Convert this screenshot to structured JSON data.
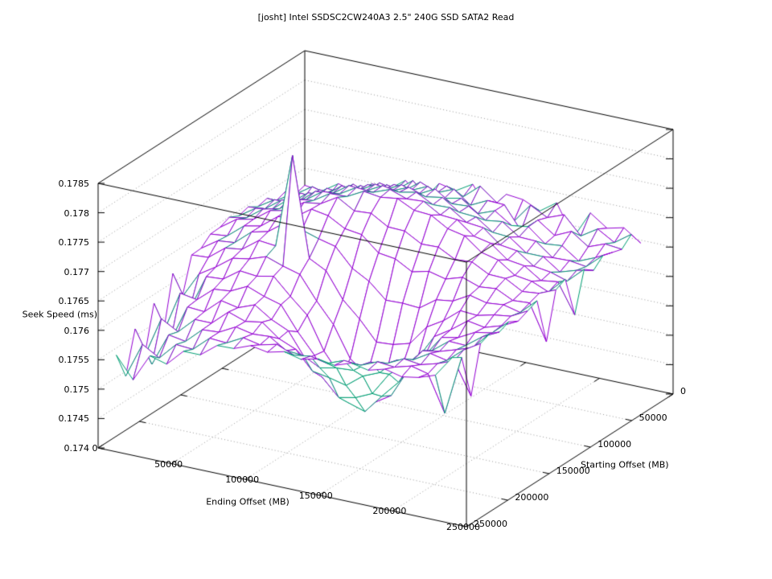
{
  "chart_data": {
    "type": "surface",
    "render_style": "3d-wireframe-hidden3d",
    "title": "[josht] Intel SSDSC2CW240A3 2.5\" 240G SSD SATA2 Read",
    "xlabel": "Ending Offset (MB)",
    "ylabel": "Starting Offset (MB)",
    "zlabel": "Seek Speed (ms)",
    "xlim": [
      0,
      250000
    ],
    "ylim": [
      0,
      250000
    ],
    "zlim": [
      0.174,
      0.1785
    ],
    "grid": true,
    "x_tick_values": [
      0,
      50000,
      100000,
      150000,
      200000,
      250000
    ],
    "x_tick_labels": [
      "0",
      "50000",
      "100000",
      "150000",
      "200000",
      "250000"
    ],
    "y_tick_values": [
      0,
      50000,
      100000,
      150000,
      200000,
      250000
    ],
    "y_tick_labels": [
      "0",
      "50000",
      "100000",
      "150000",
      "200000",
      "250000"
    ],
    "z_tick_values": [
      0.174,
      0.1745,
      0.175,
      0.1755,
      0.176,
      0.1765,
      0.177,
      0.1775,
      0.178,
      0.1785
    ],
    "z_tick_labels": [
      "0.174",
      "0.1745",
      "0.175",
      "0.1755",
      "0.176",
      "0.1765",
      "0.177",
      "0.1775",
      "0.178",
      "0.1785"
    ],
    "colors": {
      "surface_top": "#9400d3",
      "surface_bottom": "#009e73",
      "axis": "#000000",
      "grid": "#9a9a9a",
      "background": "#ffffff",
      "text": "#000000"
    },
    "x_values": [
      0,
      11400,
      22800,
      34200,
      45600,
      57000,
      68400,
      79800,
      91200,
      102600,
      114000,
      125400,
      136800,
      148200,
      159600,
      171000,
      182400,
      193800,
      205200,
      216600,
      228000
    ],
    "y_values": [
      0,
      11400,
      22800,
      34200,
      45600,
      57000,
      68400,
      79800,
      91200,
      102600,
      114000,
      125400,
      136800,
      148200,
      159600,
      171000,
      182400,
      193800,
      205200,
      216600,
      228000
    ],
    "z_values_ms": [
      [
        0.17621,
        0.17617,
        0.17636,
        0.17628,
        0.17648,
        0.17645,
        0.17666,
        0.17638,
        0.17673,
        0.17667,
        0.17684,
        0.17642,
        0.17679,
        0.17676,
        0.17663,
        0.17683,
        0.1763,
        0.17678,
        0.17658,
        0.17665,
        0.17645
      ],
      [
        0.17616,
        0.17635,
        0.17627,
        0.17647,
        0.17636,
        0.17666,
        0.1766,
        0.17682,
        0.17655,
        0.17685,
        0.17673,
        0.17697,
        0.17675,
        0.17649,
        0.17683,
        0.17668,
        0.17679,
        0.17649,
        0.17667,
        0.1765,
        0.1767
      ],
      [
        0.17632,
        0.17623,
        0.17646,
        0.17645,
        0.17668,
        0.17656,
        0.17679,
        0.17674,
        0.17696,
        0.17684,
        0.17696,
        0.17675,
        0.17689,
        0.17688,
        0.1765,
        0.17674,
        0.17654,
        0.17667,
        0.17647,
        0.17658,
        0.17655
      ],
      [
        0.17626,
        0.17644,
        0.1764,
        0.17665,
        0.17662,
        0.17682,
        0.17675,
        0.17696,
        0.17692,
        0.17705,
        0.17691,
        0.17697,
        0.17677,
        0.17688,
        0.17669,
        0.17673,
        0.1765,
        0.17653,
        0.17633,
        0.17645,
        0.1766
      ],
      [
        0.1764,
        0.17639,
        0.17661,
        0.17659,
        0.1768,
        0.17678,
        0.177,
        0.17697,
        0.17712,
        0.17702,
        0.17717,
        0.17698,
        0.177,
        0.17682,
        0.17686,
        0.17666,
        0.17665,
        0.17643,
        0.17644,
        0.1764,
        0.17665
      ],
      [
        0.17636,
        0.17654,
        0.17655,
        0.17678,
        0.1768,
        0.17702,
        0.177,
        0.17717,
        0.17712,
        0.17724,
        0.17714,
        0.17719,
        0.177,
        0.17698,
        0.17678,
        0.17676,
        0.17655,
        0.17655,
        0.17635,
        0.17644,
        0.1765
      ],
      [
        0.17646,
        0.17649,
        0.1767,
        0.17673,
        0.17697,
        0.17699,
        0.17719,
        0.17716,
        0.17731,
        0.17726,
        0.17732,
        0.17717,
        0.17718,
        0.17699,
        0.17696,
        0.17673,
        0.17669,
        0.17649,
        0.17645,
        0.17636,
        0.17662
      ],
      [
        0.17641,
        0.1766,
        0.17665,
        0.17688,
        0.17693,
        0.17713,
        0.17715,
        0.17732,
        0.1773,
        0.17741,
        0.17731,
        0.17733,
        0.17716,
        0.17714,
        0.17692,
        0.17686,
        0.17664,
        0.1766,
        0.17641,
        0.17645,
        0.17595
      ],
      [
        0.17649,
        0.17654,
        0.17675,
        0.17682,
        0.17704,
        0.17708,
        0.17726,
        0.17727,
        0.17742,
        0.17738,
        0.17742,
        0.17728,
        0.17726,
        0.17709,
        0.17703,
        0.17681,
        0.17674,
        0.17654,
        0.1765,
        0.17638,
        0.17666
      ],
      [
        0.17642,
        0.17662,
        0.17668,
        0.17689,
        0.17695,
        0.17715,
        0.17719,
        0.17736,
        0.17719,
        0.17721,
        0.17704,
        0.17703,
        0.17687,
        0.17688,
        0.17673,
        0.17675,
        0.1766,
        0.17659,
        0.17643,
        0.17646,
        0.17658
      ],
      [
        0.17641,
        0.17644,
        0.17667,
        0.17673,
        0.17695,
        0.177,
        0.1772,
        0.17715,
        0.17699,
        0.17695,
        0.1767,
        0.17666,
        0.1765,
        0.17657,
        0.1765,
        0.17659,
        0.17649,
        0.17652,
        0.17638,
        0.1764,
        0.1758
      ],
      [
        0.17627,
        0.17646,
        0.17649,
        0.17673,
        0.1768,
        0.17701,
        0.17695,
        0.17686,
        0.17679,
        0.17648,
        0.17632,
        0.17606,
        0.17607,
        0.17605,
        0.17625,
        0.17629,
        0.17645,
        0.17638,
        0.17641,
        0.17634,
        0.1766
      ],
      [
        0.17626,
        0.17628,
        0.1765,
        0.17654,
        0.17675,
        0.17672,
        0.17832,
        0.17663,
        0.17648,
        0.17605,
        0.17578,
        0.17545,
        0.17547,
        0.17555,
        0.17589,
        0.17606,
        0.17629,
        0.17627,
        0.17634,
        0.17638,
        0.17653
      ],
      [
        0.17565,
        0.1761,
        0.17628,
        0.17649,
        0.17654,
        0.17664,
        0.17654,
        0.17646,
        0.17607,
        0.17573,
        0.17521,
        0.17499,
        0.17489,
        0.17518,
        0.17545,
        0.17589,
        0.17607,
        0.17628,
        0.17623,
        0.17632,
        0.17646
      ],
      [
        0.17615,
        0.1756,
        0.17622,
        0.17624,
        0.17644,
        0.17641,
        0.17647,
        0.17619,
        0.17593,
        0.17538,
        0.17501,
        0.17461,
        0.17469,
        0.17487,
        0.17536,
        0.17567,
        0.17604,
        0.1761,
        0.17625,
        0.1763,
        0.17655
      ],
      [
        0.17525,
        0.17598,
        0.17593,
        0.17617,
        0.1762,
        0.17634,
        0.17623,
        0.17615,
        0.17575,
        0.17541,
        0.17492,
        0.17473,
        0.17464,
        0.17496,
        0.17526,
        0.17573,
        0.17592,
        0.17614,
        0.17613,
        0.17634,
        0.17648
      ],
      [
        0.17585,
        0.17528,
        0.17591,
        0.17589,
        0.17614,
        0.17608,
        0.17619,
        0.176,
        0.17587,
        0.17546,
        0.17521,
        0.17492,
        0.17498,
        0.17511,
        0.1755,
        0.17571,
        0.17602,
        0.17607,
        0.17616,
        0.17626,
        0.17656
      ],
      [
        0.17505,
        0.17575,
        0.17559,
        0.17586,
        0.17586,
        0.17611,
        0.17601,
        0.17606,
        0.17584,
        0.17572,
        0.17541,
        0.17536,
        0.17529,
        0.17551,
        0.17563,
        0.1759,
        0.17597,
        0.17614,
        0.17608,
        0.17632,
        0.17649
      ],
      [
        0.17562,
        0.17508,
        0.17564,
        0.17559,
        0.17585,
        0.17587,
        0.17602,
        0.17596,
        0.17598,
        0.1758,
        0.17578,
        0.17563,
        0.17569,
        0.17571,
        0.17591,
        0.17595,
        0.17609,
        0.17605,
        0.17613,
        0.17624,
        0.1757
      ],
      [
        0.17492,
        0.17552,
        0.17535,
        0.17564,
        0.17562,
        0.17587,
        0.17585,
        0.176,
        0.17594,
        0.17601,
        0.17589,
        0.17593,
        0.17587,
        0.17598,
        0.17596,
        0.17608,
        0.17605,
        0.17613,
        0.17606,
        0.17545,
        0.17646
      ],
      [
        0.17538,
        0.17502,
        0.17549,
        0.17541,
        0.17569,
        0.17569,
        0.17591,
        0.17592,
        0.17603,
        0.17598,
        0.17605,
        0.17598,
        0.17605,
        0.176,
        0.1761,
        0.17604,
        0.17612,
        0.17605,
        0.1761,
        0.1762,
        0.17656
      ]
    ]
  }
}
